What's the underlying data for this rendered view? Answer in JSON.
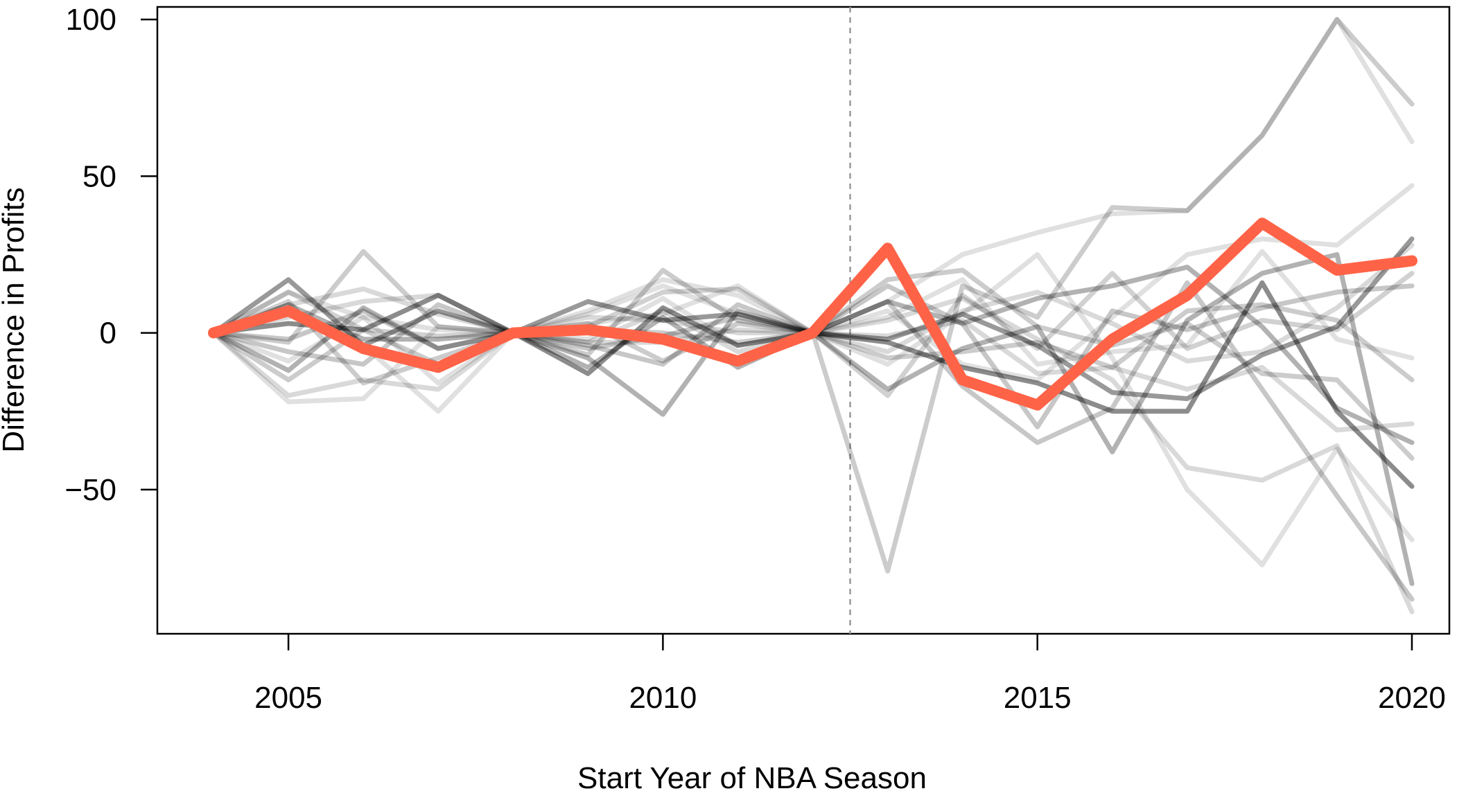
{
  "chart_data": {
    "type": "line",
    "title": "",
    "xlabel": "Start Year of NBA Season",
    "ylabel": "Difference in Profits",
    "xlim": [
      2003.25,
      2020.5
    ],
    "ylim": [
      -96,
      104
    ],
    "x_ticks": [
      2005,
      2010,
      2015,
      2020
    ],
    "y_ticks": [
      -50,
      0,
      50,
      100
    ],
    "x_tick_labels": [
      "2005",
      "2010",
      "2015",
      "2020"
    ],
    "y_tick_labels": [
      "−50",
      "0",
      "50",
      "100"
    ],
    "treatment_line_x": 2012.5,
    "grid": false,
    "legend": "none",
    "colors": {
      "highlight": "#ff6347",
      "background": "#000000"
    },
    "x": [
      2004,
      2005,
      2006,
      2007,
      2008,
      2009,
      2010,
      2011,
      2012,
      2013,
      2014,
      2015,
      2016,
      2017,
      2018,
      2019,
      2020
    ],
    "highlight_series": {
      "values": [
        0,
        7,
        -5,
        -11,
        0,
        1,
        -2,
        -9,
        0,
        27,
        -15,
        -23,
        -2,
        12,
        35,
        20,
        23
      ]
    },
    "background_series": [
      {
        "opacity": 0.2,
        "values": [
          0,
          -3,
          26,
          2,
          0,
          -7,
          20,
          4,
          0,
          -76,
          15,
          5,
          40,
          39,
          63,
          100,
          73
        ]
      },
      {
        "opacity": 0.12,
        "values": [
          0,
          -22,
          -21,
          2,
          0,
          -2,
          11,
          -4,
          0,
          -10,
          6,
          25,
          -8,
          -50,
          -74,
          -37,
          -66
        ]
      },
      {
        "opacity": 0.12,
        "values": [
          0,
          6,
          -4,
          -25,
          0,
          3,
          6,
          15,
          0,
          10,
          25,
          32,
          38,
          39,
          63,
          100,
          61
        ]
      },
      {
        "opacity": 0.12,
        "values": [
          0,
          -9,
          5,
          -16,
          0,
          7,
          17,
          12,
          0,
          7,
          -10,
          -15,
          5,
          25,
          30,
          28,
          47
        ]
      },
      {
        "opacity": 0.15,
        "values": [
          0,
          9,
          14,
          6,
          0,
          5,
          4,
          0,
          0,
          4,
          11,
          -2,
          -15,
          -43,
          -47,
          -36,
          -89
        ]
      },
      {
        "opacity": 0.45,
        "values": [
          0,
          3,
          1,
          12,
          0,
          -13,
          8,
          -4,
          0,
          -3,
          -11,
          -16,
          -25,
          -25,
          16,
          -25,
          -49
        ]
      },
      {
        "opacity": 0.4,
        "values": [
          0,
          17,
          -4,
          7,
          0,
          10,
          4,
          6,
          0,
          -2,
          6,
          -4,
          -19,
          -21,
          -7,
          2,
          30
        ]
      },
      {
        "opacity": 0.3,
        "values": [
          0,
          9,
          -2,
          -2,
          0,
          -8,
          -26,
          7,
          0,
          10,
          3,
          11,
          15,
          21,
          2,
          -24,
          -35
        ]
      },
      {
        "opacity": 0.3,
        "values": [
          0,
          -12,
          8,
          -5,
          0,
          -11,
          5,
          -11,
          0,
          -18,
          -5,
          2,
          -38,
          4,
          19,
          25,
          -80
        ]
      },
      {
        "opacity": 0.2,
        "values": [
          0,
          10,
          -16,
          -8,
          0,
          1,
          0,
          -3,
          0,
          17,
          20,
          2,
          -4,
          3,
          -13,
          -15,
          -40
        ]
      },
      {
        "opacity": 0.18,
        "values": [
          0,
          13,
          1,
          -1,
          0,
          2,
          13,
          14,
          0,
          -20,
          12,
          -5,
          19,
          -5,
          4,
          1,
          19
        ]
      },
      {
        "opacity": 0.22,
        "values": [
          0,
          -6,
          -10,
          9,
          0,
          -4,
          -10,
          9,
          0,
          15,
          3,
          -30,
          7,
          1,
          8,
          13,
          15
        ]
      },
      {
        "opacity": 0.12,
        "values": [
          0,
          13,
          5,
          1,
          0,
          6,
          15,
          6,
          0,
          5,
          17,
          -10,
          -6,
          -4,
          26,
          -2,
          -8
        ]
      },
      {
        "opacity": 0.22,
        "values": [
          0,
          -2,
          7,
          -5,
          0,
          -5,
          -1,
          5,
          0,
          10,
          -17,
          -35,
          -24,
          16,
          -18,
          -52,
          -85
        ]
      },
      {
        "opacity": 0.15,
        "values": [
          0,
          5,
          10,
          12,
          0,
          -3,
          7,
          -6,
          0,
          -6,
          7,
          13,
          3,
          -9,
          -6,
          8,
          28
        ]
      },
      {
        "opacity": 0.2,
        "values": [
          0,
          -15,
          1,
          -10,
          0,
          3,
          -9,
          3,
          0,
          -8,
          -6,
          -3,
          -11,
          7,
          9,
          4,
          -15
        ]
      },
      {
        "opacity": 0.15,
        "values": [
          0,
          -20,
          -15,
          -18,
          0,
          -3,
          -3,
          1,
          0,
          -1,
          4,
          -13,
          -11,
          -18,
          -11,
          -31,
          -29
        ]
      }
    ]
  }
}
